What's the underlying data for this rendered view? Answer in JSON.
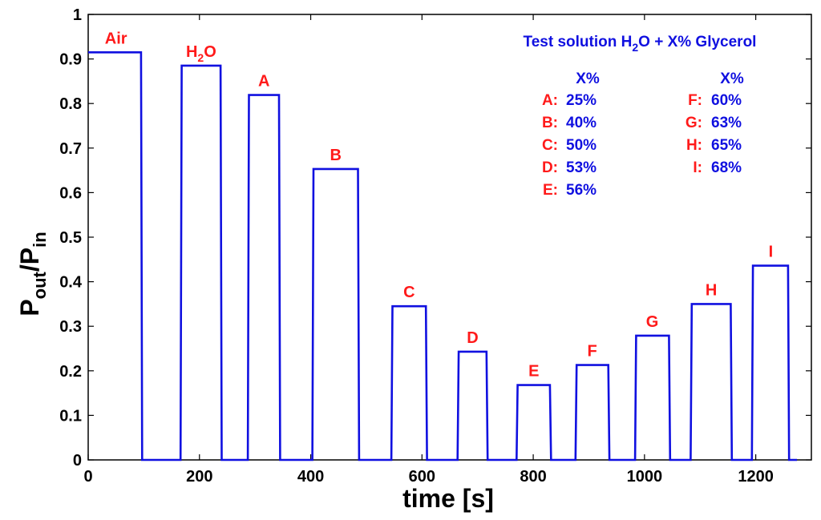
{
  "chart_data": {
    "type": "line",
    "xlabel": "time [s]",
    "ylabel": {
      "main": "P",
      "sub1": "out",
      "mid": "/P",
      "sub2": "in"
    },
    "xlim": [
      0,
      1300
    ],
    "ylim": [
      0,
      1
    ],
    "xticks": [
      0,
      200,
      400,
      600,
      800,
      1000,
      1200
    ],
    "yticks": [
      0,
      0.1,
      0.2,
      0.3,
      0.4,
      0.5,
      0.6,
      0.7,
      0.8,
      0.9,
      1
    ],
    "grid": false,
    "line_color": "#1010e0",
    "label_color": "#ff1a1a",
    "legend_color": "#1010e0",
    "series": [
      {
        "x": [
          0,
          2,
          95,
          97,
          166,
          168,
          238,
          240,
          287,
          289,
          343,
          345,
          403,
          405,
          485,
          487,
          545,
          547,
          607,
          609,
          664,
          666,
          716,
          718,
          770,
          772,
          830,
          832,
          876,
          878,
          935,
          937,
          983,
          985,
          1044,
          1046,
          1083,
          1085,
          1155,
          1157,
          1193,
          1195,
          1258,
          1260,
          1274
        ],
        "y": [
          0.915,
          0.915,
          0.915,
          0,
          0,
          0.885,
          0.885,
          0,
          0,
          0.819,
          0.819,
          0,
          0,
          0.653,
          0.653,
          0,
          0,
          0.345,
          0.345,
          0,
          0,
          0.243,
          0.243,
          0,
          0,
          0.168,
          0.168,
          0,
          0,
          0.213,
          0.213,
          0,
          0,
          0.279,
          0.279,
          0,
          0,
          0.35,
          0.35,
          0,
          0,
          0.436,
          0.436,
          0,
          0
        ]
      }
    ],
    "segment_labels": [
      {
        "text": "Air",
        "x": 50,
        "y": 0.915
      },
      {
        "text": "H2O",
        "x": 203,
        "y": 0.885,
        "main": "H",
        "sub": "2",
        "tail": "O"
      },
      {
        "text": "A",
        "x": 316,
        "y": 0.819
      },
      {
        "text": "B",
        "x": 445,
        "y": 0.653
      },
      {
        "text": "C",
        "x": 577,
        "y": 0.345
      },
      {
        "text": "D",
        "x": 691,
        "y": 0.243
      },
      {
        "text": "E",
        "x": 801,
        "y": 0.168
      },
      {
        "text": "F",
        "x": 906,
        "y": 0.213
      },
      {
        "text": "G",
        "x": 1014,
        "y": 0.279
      },
      {
        "text": "H",
        "x": 1120,
        "y": 0.35
      },
      {
        "text": "I",
        "x": 1227,
        "y": 0.436
      }
    ],
    "annotation": {
      "title_pre": "Test solution H",
      "title_sub": "2",
      "title_post": "O + X% Glycerol",
      "col_header": "X%",
      "rows_left": [
        {
          "key": "A:",
          "val": "25%"
        },
        {
          "key": "B:",
          "val": "40%"
        },
        {
          "key": "C:",
          "val": "50%"
        },
        {
          "key": "D:",
          "val": "53%"
        },
        {
          "key": "E:",
          "val": "56%"
        }
      ],
      "rows_right": [
        {
          "key": "F:",
          "val": "60%"
        },
        {
          "key": "G:",
          "val": "63%"
        },
        {
          "key": "H:",
          "val": "65%"
        },
        {
          "key": "I:",
          "val": "68%"
        }
      ]
    }
  }
}
